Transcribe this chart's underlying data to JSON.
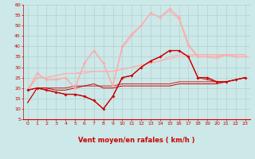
{
  "background_color": "#cce8e8",
  "grid_color": "#aacccc",
  "xlabel": "Vent moyen/en rafales ( km/h )",
  "xlabel_color": "#cc0000",
  "xlabel_fontsize": 6,
  "tick_fontsize": 4.5,
  "xtick_color": "#cc0000",
  "ytick_color": "#cc0000",
  "xmin": -0.5,
  "xmax": 23.5,
  "ymin": 5,
  "ymax": 60,
  "yticks": [
    5,
    10,
    15,
    20,
    25,
    30,
    35,
    40,
    45,
    50,
    55,
    60
  ],
  "xticks": [
    0,
    1,
    2,
    3,
    4,
    5,
    6,
    7,
    8,
    9,
    10,
    11,
    12,
    13,
    14,
    15,
    16,
    17,
    18,
    19,
    20,
    21,
    22,
    23
  ],
  "series": [
    {
      "x": [
        0,
        1,
        2,
        3,
        4,
        5,
        6,
        7,
        8,
        9,
        10,
        11,
        12,
        13,
        14,
        15,
        16,
        17,
        18,
        19,
        20,
        21,
        22,
        23
      ],
      "y": [
        19,
        20,
        19,
        18,
        17,
        17,
        16,
        14,
        10,
        16,
        25,
        26,
        30,
        33,
        35,
        38,
        38,
        35,
        25,
        25,
        23,
        23,
        24,
        25
      ],
      "color": "#cc0000",
      "lw": 1.0,
      "marker": "D",
      "ms": 1.8,
      "zorder": 5
    },
    {
      "x": [
        0,
        1,
        2,
        3,
        4,
        5,
        6,
        7,
        8,
        9,
        10,
        11,
        12,
        13,
        14,
        15,
        16,
        17,
        18,
        19,
        20,
        21,
        22,
        23
      ],
      "y": [
        13,
        20,
        20,
        19,
        19,
        20,
        21,
        22,
        20,
        20,
        21,
        21,
        21,
        21,
        21,
        21,
        22,
        22,
        22,
        22,
        22,
        23,
        24,
        25
      ],
      "color": "#cc0000",
      "lw": 0.7,
      "marker": null,
      "ms": 0,
      "zorder": 3
    },
    {
      "x": [
        0,
        1,
        2,
        3,
        4,
        5,
        6,
        7,
        8,
        9,
        10,
        11,
        12,
        13,
        14,
        15,
        16,
        17,
        18,
        19,
        20,
        21,
        22,
        23
      ],
      "y": [
        13,
        20,
        19,
        18,
        17,
        17,
        16,
        14,
        10,
        16,
        25,
        26,
        30,
        33,
        35,
        38,
        38,
        35,
        25,
        24,
        23,
        23,
        24,
        25
      ],
      "color": "#cc0000",
      "lw": 0.6,
      "marker": null,
      "ms": 0,
      "zorder": 3
    },
    {
      "x": [
        0,
        1,
        2,
        3,
        4,
        5,
        6,
        7,
        8,
        9,
        10,
        11,
        12,
        13,
        14,
        15,
        16,
        17,
        18,
        19,
        20,
        21,
        22,
        23
      ],
      "y": [
        19,
        20,
        20,
        20,
        20,
        21,
        21,
        21,
        21,
        21,
        22,
        22,
        22,
        22,
        22,
        22,
        23,
        23,
        23,
        23,
        23,
        23,
        24,
        25
      ],
      "color": "#cc0000",
      "lw": 0.6,
      "marker": null,
      "ms": 0,
      "zorder": 3
    },
    {
      "x": [
        0,
        1,
        2,
        3,
        4,
        5,
        6,
        7,
        8,
        9,
        10,
        11,
        12,
        13,
        14,
        15,
        16,
        17,
        18,
        19,
        20,
        21,
        22,
        23
      ],
      "y": [
        19,
        27,
        24,
        24,
        25,
        20,
        32,
        38,
        32,
        21,
        40,
        46,
        50,
        56,
        54,
        58,
        54,
        41,
        35,
        35,
        35,
        36,
        35,
        35
      ],
      "color": "#ffaaaa",
      "lw": 1.0,
      "marker": "D",
      "ms": 1.8,
      "zorder": 4
    },
    {
      "x": [
        0,
        1,
        2,
        3,
        4,
        5,
        6,
        7,
        8,
        9,
        10,
        11,
        12,
        13,
        14,
        15,
        16,
        17,
        18,
        19,
        20,
        21,
        22,
        23
      ],
      "y": [
        19,
        25,
        25,
        26,
        27,
        27,
        28,
        28,
        28,
        28,
        29,
        30,
        31,
        32,
        33,
        35,
        36,
        36,
        36,
        36,
        36,
        36,
        36,
        36
      ],
      "color": "#ffaaaa",
      "lw": 0.7,
      "marker": null,
      "ms": 0,
      "zorder": 2
    },
    {
      "x": [
        0,
        1,
        2,
        3,
        4,
        5,
        6,
        7,
        8,
        9,
        10,
        11,
        12,
        13,
        14,
        15,
        16,
        17,
        18,
        19,
        20,
        21,
        22,
        23
      ],
      "y": [
        19,
        27,
        24,
        24,
        25,
        20,
        32,
        38,
        32,
        21,
        39,
        45,
        50,
        56,
        54,
        57,
        53,
        40,
        35,
        35,
        34,
        36,
        35,
        35
      ],
      "color": "#ffaaaa",
      "lw": 0.6,
      "marker": null,
      "ms": 0,
      "zorder": 2
    },
    {
      "x": [
        0,
        1,
        2,
        3,
        4,
        5,
        6,
        7,
        8,
        9,
        10,
        11,
        12,
        13,
        14,
        15,
        16,
        17,
        18,
        19,
        20,
        21,
        22,
        23
      ],
      "y": [
        19,
        25,
        25,
        26,
        27,
        27,
        27,
        28,
        28,
        28,
        29,
        30,
        31,
        32,
        33,
        34,
        35,
        35,
        36,
        36,
        36,
        36,
        36,
        36
      ],
      "color": "#ffaaaa",
      "lw": 0.6,
      "marker": null,
      "ms": 0,
      "zorder": 2
    }
  ],
  "wind_dirs_deg": [
    90,
    90,
    90,
    90,
    90,
    90,
    75,
    0,
    45,
    90,
    60,
    90,
    90,
    90,
    45,
    45,
    45,
    60,
    60,
    45,
    45,
    60,
    60,
    60
  ]
}
